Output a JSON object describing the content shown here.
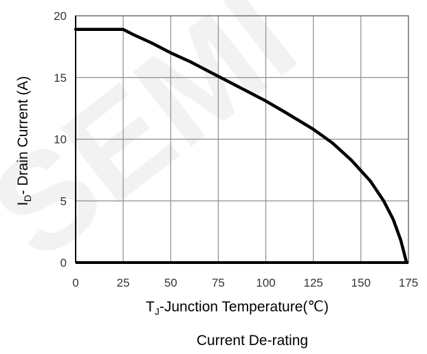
{
  "chart_data": {
    "type": "line",
    "caption": "Current De-rating",
    "xlabel": {
      "main": "T",
      "sub": "J",
      "rest": "-Junction Temperature(℃)"
    },
    "ylabel": {
      "main": "I",
      "sub": "D",
      "rest": "- Drain Current (A)"
    },
    "xlim": [
      0,
      175
    ],
    "ylim": [
      0,
      20
    ],
    "xticks": [
      "0",
      "25",
      "50",
      "75",
      "100",
      "125",
      "150",
      "175"
    ],
    "yticks": [
      "0",
      "5",
      "10",
      "15",
      "20"
    ],
    "grid": true,
    "series": [
      {
        "values": [
          {
            "x": 0,
            "y": 18.9
          },
          {
            "x": 25,
            "y": 18.9
          },
          {
            "x": 30,
            "y": 18.5
          },
          {
            "x": 40,
            "y": 17.8
          },
          {
            "x": 50,
            "y": 17.0
          },
          {
            "x": 60,
            "y": 16.3
          },
          {
            "x": 75,
            "y": 15.1
          },
          {
            "x": 90,
            "y": 13.9
          },
          {
            "x": 100,
            "y": 13.1
          },
          {
            "x": 110,
            "y": 12.2
          },
          {
            "x": 125,
            "y": 10.8
          },
          {
            "x": 135,
            "y": 9.7
          },
          {
            "x": 145,
            "y": 8.3
          },
          {
            "x": 155,
            "y": 6.6
          },
          {
            "x": 162,
            "y": 5.0
          },
          {
            "x": 167,
            "y": 3.5
          },
          {
            "x": 171,
            "y": 1.8
          },
          {
            "x": 173,
            "y": 0.6
          },
          {
            "x": 174,
            "y": 0
          }
        ]
      }
    ]
  },
  "watermark": "SEMI"
}
